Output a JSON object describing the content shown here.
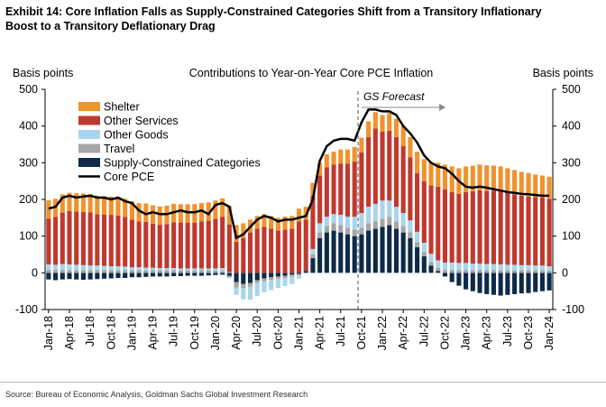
{
  "chart_data": {
    "type": "bar",
    "title": "Exhibit 14: Core Inflation Falls as Supply-Constrained Categories Shift from a Transitory Inflationary Boost to a Transitory Deflationary Drag",
    "subtitle": "Contributions to Year-on-Year Core PCE Inflation",
    "y_label": "Basis points",
    "y2_label": "Basis points",
    "annotation": "GS Forecast",
    "source": "Source: Bureau of Economic Analysis, Goldman Sachs Global Investment Research",
    "stacked": true,
    "legend": "top-left",
    "categories": [
      "Jan-18",
      null,
      null,
      "Apr-18",
      null,
      null,
      "Jul-18",
      null,
      null,
      "Oct-18",
      null,
      null,
      "Jan-19",
      null,
      null,
      "Apr-19",
      null,
      null,
      "Jul-19",
      null,
      null,
      "Oct-19",
      null,
      null,
      "Jan-20",
      null,
      null,
      "Apr-20",
      null,
      null,
      "Jul-20",
      null,
      null,
      "Oct-20",
      null,
      null,
      "Jan-21",
      null,
      null,
      "Apr-21",
      null,
      null,
      "Jul-21",
      null,
      null,
      "Oct-21",
      null,
      null,
      "Jan-22",
      null,
      null,
      "Apr-22",
      null,
      null,
      "Jul-22",
      null,
      null,
      "Oct-22",
      null,
      null,
      "Jan-23",
      null,
      null,
      "Apr-23",
      null,
      null,
      "Jul-23",
      null,
      null,
      "Oct-23",
      null,
      null,
      "Jan-24"
    ],
    "series": [
      {
        "name": "Shelter",
        "color": "#f0922e",
        "values": [
          50,
          50,
          50,
          50,
          50,
          50,
          50,
          50,
          50,
          50,
          50,
          50,
          50,
          50,
          50,
          50,
          50,
          50,
          50,
          50,
          50,
          50,
          50,
          50,
          50,
          50,
          50,
          45,
          40,
          35,
          35,
          35,
          35,
          35,
          35,
          35,
          35,
          35,
          35,
          35,
          35,
          35,
          38,
          38,
          40,
          40,
          43,
          45,
          45,
          48,
          50,
          55,
          55,
          58,
          60,
          62,
          65,
          68,
          70,
          70,
          70,
          70,
          70,
          70,
          68,
          68,
          67,
          66,
          65,
          64,
          62,
          60,
          60
        ]
      },
      {
        "name": "Other Services",
        "color": "#c0392e",
        "values": [
          125,
          130,
          140,
          145,
          145,
          145,
          145,
          140,
          140,
          140,
          138,
          135,
          130,
          125,
          125,
          120,
          118,
          120,
          125,
          125,
          125,
          125,
          128,
          130,
          135,
          140,
          130,
          85,
          95,
          110,
          120,
          125,
          120,
          115,
          118,
          120,
          140,
          140,
          145,
          130,
          135,
          135,
          140,
          145,
          150,
          165,
          190,
          205,
          188,
          190,
          190,
          182,
          172,
          160,
          168,
          186,
          201,
          199,
          192,
          188,
          193,
          197,
          200,
          199,
          200,
          199,
          196,
          192,
          189,
          187,
          186,
          185,
          184
        ]
      },
      {
        "name": "Other Goods",
        "color": "#a9d4ee",
        "values": [
          15,
          14,
          16,
          15,
          14,
          13,
          12,
          12,
          11,
          10,
          10,
          9,
          8,
          8,
          7,
          7,
          6,
          6,
          6,
          5,
          5,
          5,
          5,
          5,
          6,
          8,
          2,
          -20,
          -30,
          -35,
          -35,
          -30,
          -28,
          -25,
          -22,
          -20,
          -10,
          0,
          15,
          25,
          25,
          25,
          28,
          30,
          35,
          40,
          45,
          48,
          50,
          45,
          40,
          35,
          32,
          28,
          25,
          22,
          20,
          20,
          20,
          20,
          20,
          18,
          18,
          17,
          17,
          16,
          15,
          15,
          14,
          14,
          13,
          13,
          12
        ]
      },
      {
        "name": "Travel",
        "color": "#a6a6a6",
        "values": [
          8,
          8,
          8,
          8,
          8,
          8,
          8,
          8,
          8,
          8,
          8,
          8,
          7,
          7,
          7,
          7,
          7,
          7,
          7,
          7,
          7,
          7,
          7,
          7,
          6,
          5,
          -5,
          -15,
          -12,
          -10,
          -8,
          -8,
          -7,
          -6,
          -6,
          -5,
          -3,
          0,
          10,
          15,
          18,
          20,
          20,
          18,
          18,
          18,
          20,
          20,
          22,
          22,
          20,
          18,
          16,
          14,
          12,
          10,
          9,
          8,
          8,
          7,
          7,
          7,
          7,
          7,
          7,
          7,
          7,
          7,
          7,
          7,
          7,
          7,
          6
        ]
      },
      {
        "name": "Supply-Constrained Categories",
        "color": "#0d2a4a",
        "values": [
          -18,
          -20,
          -18,
          -17,
          -18,
          -19,
          -18,
          -17,
          -16,
          -15,
          -14,
          -14,
          -12,
          -12,
          -11,
          -10,
          -10,
          -10,
          -9,
          -9,
          -8,
          -8,
          -8,
          -7,
          -6,
          -5,
          -8,
          -25,
          -30,
          -28,
          -20,
          -15,
          -12,
          -10,
          -8,
          -5,
          -3,
          5,
          40,
          95,
          110,
          115,
          110,
          105,
          100,
          105,
          115,
          120,
          125,
          130,
          120,
          110,
          95,
          70,
          45,
          20,
          5,
          -10,
          -25,
          -35,
          -45,
          -50,
          -55,
          -58,
          -60,
          -62,
          -60,
          -58,
          -56,
          -55,
          -52,
          -50,
          -48
        ]
      },
      {
        "name": "Core PCE",
        "color": "#000000",
        "type": "line",
        "values": [
          175,
          180,
          205,
          210,
          205,
          208,
          210,
          205,
          205,
          200,
          205,
          195,
          190,
          170,
          160,
          165,
          160,
          160,
          165,
          170,
          165,
          165,
          170,
          160,
          185,
          190,
          180,
          95,
          105,
          125,
          145,
          155,
          150,
          140,
          145,
          145,
          150,
          155,
          200,
          305,
          345,
          360,
          365,
          365,
          360,
          410,
          445,
          445,
          440,
          440,
          430,
          400,
          380,
          355,
          320,
          300,
          290,
          285,
          270,
          250,
          235,
          232,
          235,
          232,
          228,
          224,
          220,
          218,
          215,
          214,
          212,
          210,
          210
        ]
      }
    ],
    "ylim": [
      -100,
      500
    ],
    "yticks": [
      -100,
      0,
      100,
      200,
      300,
      400,
      500
    ],
    "y2lim": [
      -100,
      500
    ],
    "y2ticks": [
      -100,
      0,
      100,
      200,
      300,
      400,
      500
    ]
  }
}
